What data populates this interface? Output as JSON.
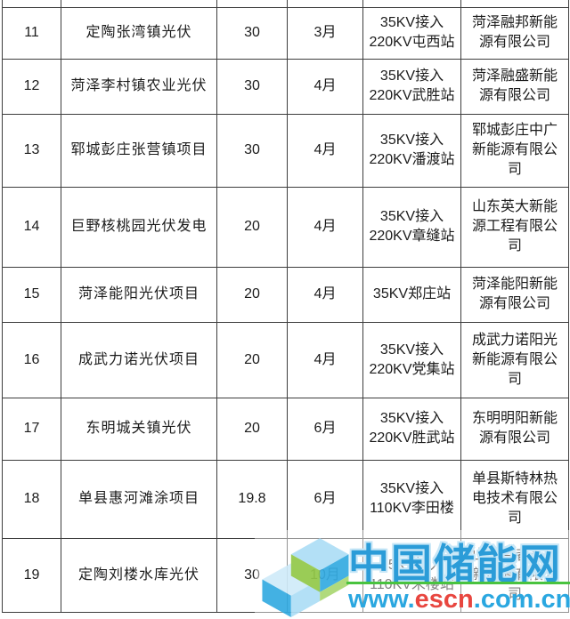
{
  "rows": [
    {
      "no": "11",
      "project": "定陶张湾镇光伏",
      "capacity": "30",
      "month": "3月",
      "grid_line1": "35KV接入",
      "grid_line2": "220KV屯西站",
      "company": "菏泽融邦新能源有限公司"
    },
    {
      "no": "12",
      "project": "菏泽李村镇农业光伏",
      "capacity": "30",
      "month": "4月",
      "grid_line1": "35KV接入",
      "grid_line2": "220KV武胜站",
      "company": "菏泽融盛新能源有限公司"
    },
    {
      "no": "13",
      "project": "郓城彭庄张营镇项目",
      "capacity": "30",
      "month": "4月",
      "grid_line1": "35KV接入",
      "grid_line2": "220KV潘渡站",
      "company": "郓城彭庄中广新能源有限公司"
    },
    {
      "no": "14",
      "project": "巨野核桃园光伏发电",
      "capacity": "20",
      "month": "4月",
      "grid_line1": "35KV接入",
      "grid_line2": "220KV章缝站",
      "company": "山东英大新能源工程有限公司"
    },
    {
      "no": "15",
      "project": "菏泽能阳光伏项目",
      "capacity": "20",
      "month": "4月",
      "grid_line1": "35KV郑庄站",
      "grid_line2": "",
      "company": "菏泽能阳新能源有限公司"
    },
    {
      "no": "16",
      "project": "成武力诺光伏项目",
      "capacity": "20",
      "month": "4月",
      "grid_line1": "35KV接入",
      "grid_line2": "220KV党集站",
      "company": "成武力诺阳光新能源有限公司"
    },
    {
      "no": "17",
      "project": "东明城关镇光伏",
      "capacity": "20",
      "month": "6月",
      "grid_line1": "35KV接入",
      "grid_line2": "220KV胜武站",
      "company": "东明明阳新能源有限公司"
    },
    {
      "no": "18",
      "project": "单县惠河滩涂项目",
      "capacity": "19.8",
      "month": "6月",
      "grid_line1": "35KV接入",
      "grid_line2": "110KV李田楼",
      "company": "单县斯特林热电技术有限公司"
    },
    {
      "no": "19",
      "project": "定陶刘楼水库光伏",
      "capacity": "30",
      "month": "10月",
      "grid_line1": "35KV接入",
      "grid_line2": "110KV朱楼站",
      "company": "山东合者光电新能源有限公司"
    }
  ],
  "watermark": {
    "title": "中国储能网",
    "url_www": "www.",
    "url_escn": "escn",
    "url_domain": ".com.cn",
    "colors": {
      "brand_blue": "#2aa7e0",
      "brand_red": "#e8463f",
      "line_green": "#49c33f",
      "logo_green": "#8dc63f",
      "logo_light_blue": "#a9dcf5"
    }
  }
}
